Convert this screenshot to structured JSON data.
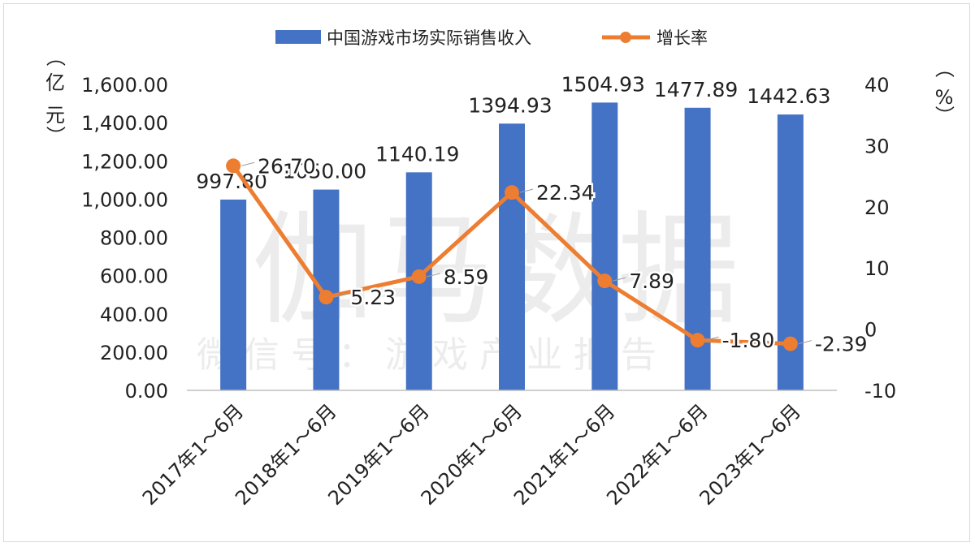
{
  "chart_data": {
    "type": "bar+line",
    "categories": [
      "2017年1～6月",
      "2018年1～6月",
      "2019年1～6月",
      "2020年1～6月",
      "2021年1～6月",
      "2022年1～6月",
      "2023年1～6月"
    ],
    "series": [
      {
        "name": "中国游戏市场实际销售收入",
        "type": "bar",
        "axis": "left",
        "color": "#4472c4",
        "values": [
          997.8,
          1050.0,
          1140.19,
          1394.93,
          1504.93,
          1477.89,
          1442.63
        ],
        "labels": [
          "997.80",
          "1050.00",
          "1140.19",
          "1394.93",
          "1504.93",
          "1477.89",
          "1442.63"
        ]
      },
      {
        "name": "增长率",
        "type": "line",
        "axis": "right",
        "color": "#ed7d31",
        "values": [
          26.7,
          5.23,
          8.59,
          22.34,
          7.89,
          -1.8,
          -2.39
        ],
        "labels": [
          "26.70",
          "5.23",
          "8.59",
          "22.34",
          "7.89",
          "-1.80",
          "-2.39"
        ]
      }
    ],
    "y_left": {
      "range": [
        0,
        1600
      ],
      "ticks": [
        "0.00",
        "200.00",
        "400.00",
        "600.00",
        "800.00",
        "1,000.00",
        "1,200.00",
        "1,400.00",
        "1,600.00"
      ],
      "tick_values": [
        0,
        200,
        400,
        600,
        800,
        1000,
        1200,
        1400,
        1600
      ],
      "unit_chars": [
        "（",
        "亿",
        "元",
        "）"
      ]
    },
    "y_right": {
      "range": [
        -10,
        40
      ],
      "ticks": [
        "-10",
        "0",
        "10",
        "20",
        "30",
        "40"
      ],
      "tick_values": [
        -10,
        0,
        10,
        20,
        30,
        40
      ],
      "unit_chars": [
        "（",
        "%",
        "）"
      ]
    },
    "legend_position": "top-center",
    "grid": false
  },
  "watermark": {
    "main": "伽马数据",
    "sub": "微 信 号 ： 游 戏 产 业 报 告"
  }
}
